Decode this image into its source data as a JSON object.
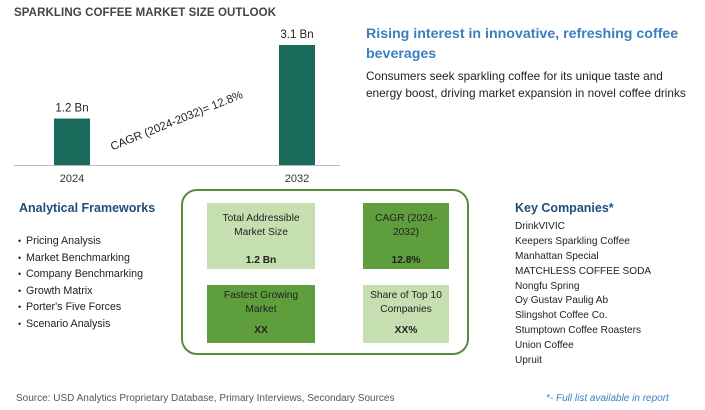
{
  "page_title": "SPARKLING COFFEE MARKET SIZE OUTLOOK",
  "headline": "Rising interest in innovative, refreshing coffee beverages",
  "subline": "Consumers seek sparkling coffee for its unique taste and energy boost, driving market expansion in novel coffee drinks",
  "chart_data": {
    "type": "bar",
    "categories": [
      "2024",
      "2032"
    ],
    "values": [
      1.2,
      3.1
    ],
    "data_labels": [
      "1.2 Bn",
      "3.1 Bn"
    ],
    "annotation": "CAGR (2024-2032)=  12.8%",
    "ylim": [
      0,
      3.1
    ],
    "bar_color": "#1a6b5c",
    "grid": false,
    "title": "",
    "xlabel": "",
    "ylabel": ""
  },
  "analytical_frameworks": {
    "title": "Analytical Frameworks",
    "items": [
      "Pricing Analysis",
      "Market Benchmarking",
      "Company Benchmarking",
      "Growth Matrix",
      "Porter's Five Forces",
      "Scenario Analysis"
    ]
  },
  "metrics": {
    "tam": {
      "label": "Total Addressible Market Size",
      "value": "1.2 Bn"
    },
    "cagr": {
      "label": "CAGR (2024-2032)",
      "value": "12.8%"
    },
    "fastest": {
      "label": "Fastest Growing Market",
      "value": "XX"
    },
    "share": {
      "label": "Share of Top 10 Companies",
      "value": "XX%"
    }
  },
  "key_companies": {
    "title": "Key Companies*",
    "items": [
      "DrinkVIVIC",
      "Keepers Sparkling Coffee",
      "Manhattan Special",
      "MATCHLESS COFFEE SODA",
      "Nongfu Spring",
      "Oy Gustav Paulig Ab",
      "Slingshot Coffee Co.",
      "Stumptown Coffee Roasters",
      "Union Coffee",
      "Upruit"
    ]
  },
  "source": "Source: USD Analytics Proprietary Database, Primary Interviews, Secondary Sources",
  "footnote": "*- Full list available in report",
  "colors": {
    "accent_blue": "#3b7fbf",
    "heading_navy": "#1f4e79",
    "bar_teal": "#1a6b5c",
    "green_dark": "#5e9e3c",
    "green_light": "#c6dfb0"
  }
}
